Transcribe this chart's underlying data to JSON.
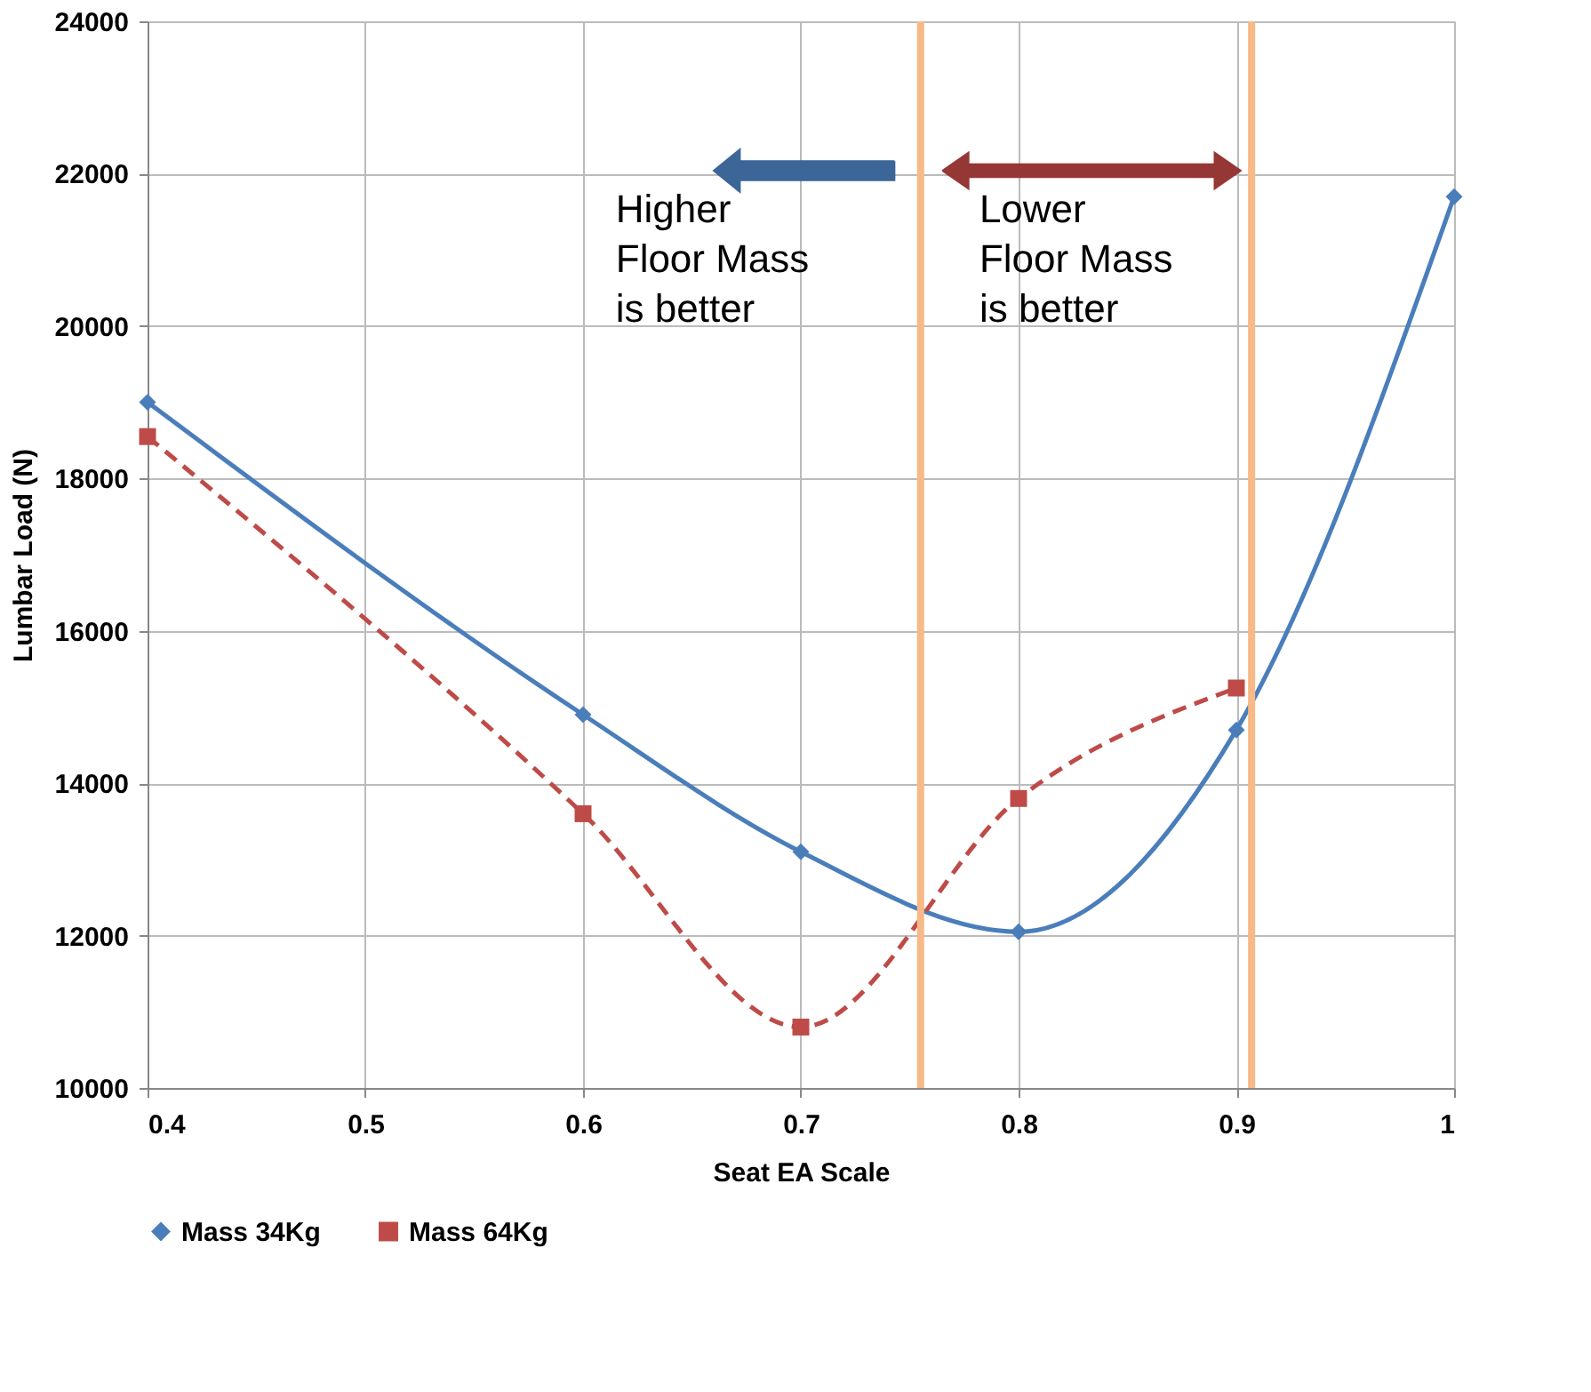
{
  "chart_data": {
    "type": "line",
    "xlabel": "Seat EA Scale",
    "ylabel": "Lumbar Load (N)",
    "x": [
      0.4,
      0.6,
      0.7,
      0.8,
      0.9,
      1.0
    ],
    "series": [
      {
        "name": "Mass 34Kg",
        "color": "#4a7ebb",
        "marker": "diamond",
        "line_style": "solid",
        "values": [
          19000,
          14900,
          13100,
          12050,
          14700,
          21700
        ]
      },
      {
        "name": "Mass 64Kg",
        "color": "#be4b48",
        "marker": "square",
        "line_style": "dashed",
        "values": [
          18550,
          13600,
          10800,
          13800,
          15250,
          null
        ]
      }
    ],
    "xlim": [
      0.4,
      1.0
    ],
    "xticks": [
      0.4,
      0.5,
      0.6,
      0.7,
      0.8,
      0.9,
      1
    ],
    "ylim": [
      10000,
      24000
    ],
    "yticks": [
      10000,
      12000,
      14000,
      16000,
      18000,
      20000,
      22000,
      24000
    ],
    "ref_lines": [
      {
        "axis": "x",
        "value": 0.755,
        "color": "#f8b987"
      },
      {
        "axis": "x",
        "value": 0.907,
        "color": "#f8b987"
      }
    ],
    "annotations": [
      "Higher\nFloor Mass\nis better",
      "Lower\nFloor Mass\nis better"
    ],
    "grid": true,
    "legend": "bottom"
  }
}
